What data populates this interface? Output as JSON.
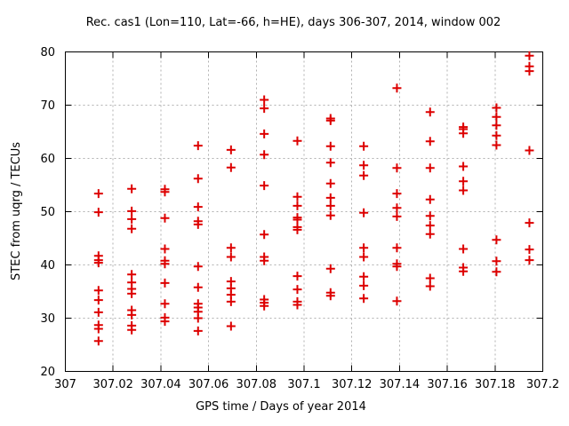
{
  "figure": {
    "background_color": "#ffffff",
    "frame_color": "#000000",
    "grid_color": "#b0b0b0",
    "text_color": "#000000"
  },
  "chart_data": {
    "type": "scatter",
    "title": "Rec. cas1 (Lon=110, Lat=-66, h=HE), days 306-307, 2014, window 002",
    "xlabel": "GPS time / Days of year 2014",
    "ylabel": "STEC from uqrg / TECUs",
    "xlim": [
      307.0,
      307.2
    ],
    "ylim": [
      20,
      80
    ],
    "grid": true,
    "legend": "none",
    "marker": "plus",
    "marker_color": "#dd0000",
    "marker_size": 10,
    "xticks": [
      307.0,
      307.02,
      307.04,
      307.06,
      307.08,
      307.1,
      307.12,
      307.14,
      307.16,
      307.18,
      307.2
    ],
    "xtick_labels": [
      "307",
      "307.02",
      "307.04",
      "307.06",
      "307.08",
      "307.1",
      "307.12",
      "307.14",
      "307.16",
      "307.18",
      "307.2"
    ],
    "yticks": [
      20,
      30,
      40,
      50,
      60,
      70,
      80
    ],
    "ytick_labels": [
      "20",
      "30",
      "40",
      "50",
      "60",
      "70",
      "80"
    ],
    "series": [
      {
        "name": "STEC",
        "points": [
          [
            307.0139,
            53.4
          ],
          [
            307.0139,
            49.9
          ],
          [
            307.0139,
            41.7
          ],
          [
            307.0139,
            40.9
          ],
          [
            307.0139,
            40.4
          ],
          [
            307.0139,
            35.2
          ],
          [
            307.0139,
            33.4
          ],
          [
            307.0139,
            31.1
          ],
          [
            307.0139,
            28.7
          ],
          [
            307.0139,
            28.0
          ],
          [
            307.0139,
            25.7
          ],
          [
            307.0278,
            54.3
          ],
          [
            307.0278,
            50.1
          ],
          [
            307.0278,
            48.6
          ],
          [
            307.0278,
            46.8
          ],
          [
            307.0278,
            38.2
          ],
          [
            307.0278,
            36.7
          ],
          [
            307.0278,
            35.5
          ],
          [
            307.0278,
            34.6
          ],
          [
            307.0278,
            31.5
          ],
          [
            307.0278,
            30.6
          ],
          [
            307.0278,
            28.6
          ],
          [
            307.0278,
            27.8
          ],
          [
            307.0417,
            54.2
          ],
          [
            307.0417,
            53.7
          ],
          [
            307.0417,
            48.8
          ],
          [
            307.0417,
            43.0
          ],
          [
            307.0417,
            40.8
          ],
          [
            307.0417,
            40.2
          ],
          [
            307.0417,
            36.6
          ],
          [
            307.0417,
            32.7
          ],
          [
            307.0417,
            30.1
          ],
          [
            307.0417,
            29.4
          ],
          [
            307.0556,
            62.4
          ],
          [
            307.0556,
            56.2
          ],
          [
            307.0556,
            50.9
          ],
          [
            307.0556,
            48.2
          ],
          [
            307.0556,
            47.6
          ],
          [
            307.0556,
            39.7
          ],
          [
            307.0556,
            35.8
          ],
          [
            307.0556,
            32.7
          ],
          [
            307.0556,
            32.0
          ],
          [
            307.0556,
            31.2
          ],
          [
            307.0556,
            30.0
          ],
          [
            307.0556,
            27.6
          ],
          [
            307.0694,
            61.6
          ],
          [
            307.0694,
            58.3
          ],
          [
            307.0694,
            43.2
          ],
          [
            307.0694,
            41.5
          ],
          [
            307.0694,
            36.9
          ],
          [
            307.0694,
            35.6
          ],
          [
            307.0694,
            34.4
          ],
          [
            307.0694,
            33.1
          ],
          [
            307.0694,
            28.5
          ],
          [
            307.0833,
            71.0
          ],
          [
            307.0833,
            69.4
          ],
          [
            307.0833,
            64.6
          ],
          [
            307.0833,
            60.7
          ],
          [
            307.0833,
            54.9
          ],
          [
            307.0833,
            45.7
          ],
          [
            307.0833,
            41.5
          ],
          [
            307.0833,
            40.8
          ],
          [
            307.0833,
            33.5
          ],
          [
            307.0833,
            32.9
          ],
          [
            307.0833,
            32.3
          ],
          [
            307.0972,
            63.3
          ],
          [
            307.0972,
            52.8
          ],
          [
            307.0972,
            51.1
          ],
          [
            307.0972,
            48.9
          ],
          [
            307.0972,
            48.5
          ],
          [
            307.0972,
            47.1
          ],
          [
            307.0972,
            46.6
          ],
          [
            307.0972,
            37.9
          ],
          [
            307.0972,
            35.4
          ],
          [
            307.0972,
            33.1
          ],
          [
            307.0972,
            32.5
          ],
          [
            307.1111,
            67.5
          ],
          [
            307.1111,
            67.1
          ],
          [
            307.1111,
            62.3
          ],
          [
            307.1111,
            59.2
          ],
          [
            307.1111,
            55.3
          ],
          [
            307.1111,
            52.6
          ],
          [
            307.1111,
            51.1
          ],
          [
            307.1111,
            49.3
          ],
          [
            307.1111,
            39.3
          ],
          [
            307.1111,
            34.8
          ],
          [
            307.1111,
            34.2
          ],
          [
            307.125,
            62.3
          ],
          [
            307.125,
            58.7
          ],
          [
            307.125,
            56.8
          ],
          [
            307.125,
            49.8
          ],
          [
            307.125,
            43.2
          ],
          [
            307.125,
            41.5
          ],
          [
            307.125,
            37.8
          ],
          [
            307.125,
            36.1
          ],
          [
            307.125,
            33.7
          ],
          [
            307.1389,
            73.2
          ],
          [
            307.1389,
            58.2
          ],
          [
            307.1389,
            53.4
          ],
          [
            307.1389,
            50.7
          ],
          [
            307.1389,
            49.1
          ],
          [
            307.1389,
            43.2
          ],
          [
            307.1389,
            40.2
          ],
          [
            307.1389,
            39.7
          ],
          [
            307.1389,
            33.2
          ],
          [
            307.1528,
            68.7
          ],
          [
            307.1528,
            63.2
          ],
          [
            307.1528,
            58.2
          ],
          [
            307.1528,
            52.3
          ],
          [
            307.1528,
            49.2
          ],
          [
            307.1528,
            47.4
          ],
          [
            307.1528,
            45.8
          ],
          [
            307.1528,
            37.5
          ],
          [
            307.1528,
            36.0
          ],
          [
            307.1667,
            65.9
          ],
          [
            307.1667,
            65.5
          ],
          [
            307.1667,
            64.7
          ],
          [
            307.1667,
            58.5
          ],
          [
            307.1667,
            55.7
          ],
          [
            307.1667,
            54.0
          ],
          [
            307.1667,
            43.0
          ],
          [
            307.1667,
            39.5
          ],
          [
            307.1667,
            38.8
          ],
          [
            307.1806,
            69.5
          ],
          [
            307.1806,
            67.8
          ],
          [
            307.1806,
            66.2
          ],
          [
            307.1806,
            64.3
          ],
          [
            307.1806,
            62.5
          ],
          [
            307.1806,
            44.7
          ],
          [
            307.1806,
            40.7
          ],
          [
            307.1806,
            38.7
          ],
          [
            307.1944,
            79.3
          ],
          [
            307.1944,
            77.3
          ],
          [
            307.1944,
            76.4
          ],
          [
            307.1944,
            61.5
          ],
          [
            307.1944,
            47.9
          ],
          [
            307.1944,
            42.9
          ],
          [
            307.1944,
            40.9
          ]
        ]
      }
    ]
  }
}
